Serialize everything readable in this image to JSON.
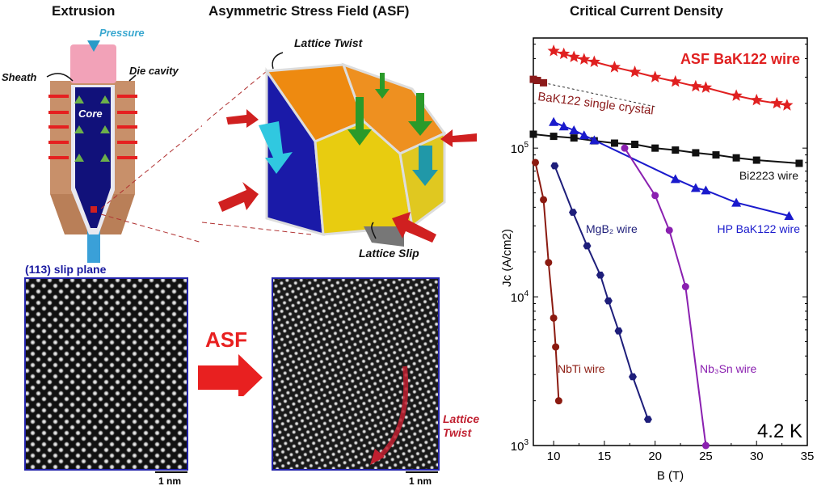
{
  "panels": {
    "extrusion": {
      "title": "Extrusion",
      "pressure": "Pressure",
      "sheath": "Sheath",
      "die_cavity": "Die cavity",
      "core": "Core"
    },
    "asf": {
      "title": "Asymmetric Stress Field (ASF)",
      "lattice_twist": "Lattice Twist",
      "lattice_slip": "Lattice Slip"
    },
    "stem": {
      "slip_plane": "(113) slip plane",
      "asf_arrow": "ASF",
      "lattice_twist": "Lattice\nTwist",
      "scale_left": "1 nm",
      "scale_right": "1 nm"
    }
  },
  "colors": {
    "asf": "#e02020",
    "crystal": "#8b1a1a",
    "bi2223": "#111111",
    "hp": "#1a1acc",
    "nbti": "#8b1a10",
    "mgb2": "#1e1e7a",
    "nb3sn": "#8a20b0"
  },
  "chart_data": {
    "type": "scatter",
    "title": "Critical Current Density",
    "xlabel": "B (T)",
    "ylabel": "Jc (A/cm2)",
    "xlim": [
      8,
      35
    ],
    "ylim": [
      1000,
      550000
    ],
    "yscale": "log",
    "xticks": [
      "10",
      "15",
      "20",
      "25",
      "30",
      "35"
    ],
    "yticks": [
      "10^3",
      "10^4",
      "10^5"
    ],
    "annotation": "4.2 K",
    "series": [
      {
        "name": "ASF BaK122 wire",
        "marker": "star",
        "color": "#e02020",
        "x": [
          10,
          11,
          12,
          13,
          14,
          16,
          18,
          20,
          22,
          24,
          25,
          28,
          30,
          32,
          33
        ],
        "y": [
          450000,
          430000,
          410000,
          395000,
          380000,
          350000,
          325000,
          300000,
          280000,
          260000,
          255000,
          225000,
          210000,
          200000,
          194000
        ]
      },
      {
        "name": "BaK122 single crystal",
        "marker": "square",
        "color": "#8b1a1a",
        "dashed_to": 20,
        "x": [
          8,
          8.4,
          9
        ],
        "y": [
          290000,
          285000,
          275000
        ]
      },
      {
        "name": "Bi2223 wire",
        "marker": "square",
        "color": "#111111",
        "x": [
          8,
          10,
          12,
          14,
          16,
          18,
          20,
          22,
          24,
          26,
          28,
          30,
          34.2
        ],
        "y": [
          124000,
          120000,
          117000,
          112000,
          108000,
          106000,
          100000,
          97000,
          93000,
          90000,
          86000,
          83000,
          79000
        ]
      },
      {
        "name": "HP BaK122 wire",
        "marker": "triangle",
        "color": "#1a1acc",
        "x": [
          10,
          11,
          12,
          13,
          14,
          22,
          24,
          25,
          28,
          33.2
        ],
        "y": [
          150000,
          140000,
          132000,
          122000,
          113000,
          62000,
          54000,
          52000,
          43000,
          35000
        ]
      },
      {
        "name": "NbTi wire",
        "marker": "circle",
        "color": "#8b1a10",
        "x": [
          8.2,
          9,
          9.5,
          10,
          10.2,
          10.5
        ],
        "y": [
          80000,
          45000,
          17000,
          7200,
          4600,
          2000
        ]
      },
      {
        "name": "MgB2 wire",
        "marker": "hexagon",
        "color": "#1e1e7a",
        "x": [
          10.1,
          11.9,
          13.3,
          14.6,
          15.4,
          16.4,
          17.8,
          19.3
        ],
        "y": [
          76000,
          37000,
          22000,
          14000,
          9400,
          5900,
          2900,
          1500
        ]
      },
      {
        "name": "Nb3Sn wire",
        "marker": "circle",
        "color": "#8a20b0",
        "x": [
          17,
          20,
          21.4,
          23,
          25
        ],
        "y": [
          100000,
          48000,
          28000,
          11700,
          1000
        ]
      }
    ],
    "labels": {
      "asf": "ASF BaK122 wire",
      "crystal": "BaK122 single crystal",
      "bi2223": "Bi2223 wire",
      "hp": "HP BaK122 wire",
      "nbti": "NbTi wire",
      "mgb2": "MgB₂ wire",
      "nb3sn": "Nb₃Sn wire"
    }
  }
}
